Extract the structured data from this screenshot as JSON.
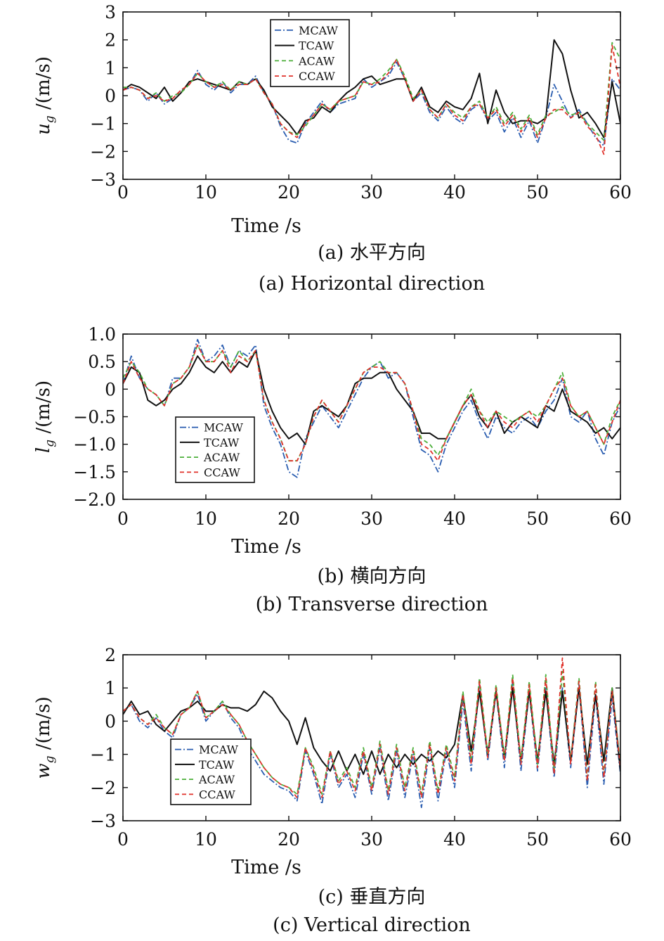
{
  "chart_data": [
    {
      "type": "line",
      "ylabel": "u_g /(m/s)",
      "ylabel_main": "u",
      "ylabel_sub": "g",
      "ylabel_unit": " /(m/s)",
      "xlabel": "Time /s",
      "caption_cn": "(a) 水平方向",
      "caption_en": "(a) Horizontal direction",
      "xlim": [
        0,
        60
      ],
      "ylim": [
        -3,
        3
      ],
      "xticks": [
        "0",
        "10",
        "20",
        "30",
        "40",
        "50",
        "60"
      ],
      "yticks": [
        "3",
        "2",
        "1",
        "0",
        "−1",
        "−2",
        "−3"
      ],
      "legend_position": "top-center",
      "x": [
        0,
        1,
        2,
        3,
        4,
        5,
        6,
        7,
        8,
        9,
        10,
        11,
        12,
        13,
        14,
        15,
        16,
        17,
        18,
        19,
        20,
        21,
        22,
        23,
        24,
        25,
        26,
        27,
        28,
        29,
        30,
        31,
        32,
        33,
        34,
        35,
        36,
        37,
        38,
        39,
        40,
        41,
        42,
        43,
        44,
        45,
        46,
        47,
        48,
        49,
        50,
        51,
        52,
        53,
        54,
        55,
        56,
        57,
        58,
        59,
        60
      ],
      "series": [
        {
          "name": "MCAW",
          "color": "#2a5db0",
          "dash": "9,3,2,3",
          "values": [
            0.2,
            0.3,
            0.2,
            -0.2,
            0.1,
            -0.3,
            -0.1,
            0.2,
            0.4,
            0.9,
            0.4,
            0.2,
            0.5,
            0.1,
            0.4,
            0.4,
            0.7,
            0.1,
            -0.3,
            -1.1,
            -1.6,
            -1.7,
            -1.0,
            -0.6,
            -0.2,
            -0.6,
            -0.3,
            -0.2,
            -0.1,
            0.6,
            0.3,
            0.5,
            0.7,
            1.2,
            0.6,
            -0.2,
            0.1,
            -0.6,
            -0.9,
            -0.4,
            -0.8,
            -1.0,
            -0.5,
            -0.3,
            -0.9,
            -0.6,
            -1.3,
            -0.8,
            -1.5,
            -0.9,
            -1.7,
            -0.8,
            0.4,
            -0.2,
            -0.8,
            -0.5,
            -1.0,
            -1.5,
            -1.8,
            0.6,
            0.2
          ]
        },
        {
          "name": "TCAW",
          "color": "#111111",
          "dash": "",
          "values": [
            0.2,
            0.4,
            0.3,
            0.1,
            -0.1,
            0.3,
            -0.2,
            0.1,
            0.5,
            0.6,
            0.5,
            0.4,
            0.3,
            0.2,
            0.5,
            0.4,
            0.6,
            0.2,
            -0.4,
            -0.7,
            -1.0,
            -1.4,
            -0.9,
            -0.8,
            -0.4,
            -0.6,
            -0.2,
            0.1,
            0.3,
            0.6,
            0.7,
            0.4,
            0.5,
            0.6,
            0.6,
            -0.2,
            0.3,
            -0.4,
            -0.6,
            -0.2,
            -0.4,
            -0.5,
            -0.1,
            0.8,
            -1.0,
            0.2,
            -0.6,
            -1.0,
            -0.9,
            -0.9,
            -1.0,
            -0.8,
            2.0,
            1.5,
            0.2,
            -0.8,
            -0.6,
            -1.0,
            -1.5,
            0.5,
            -1.0
          ]
        },
        {
          "name": "ACAW",
          "color": "#4caf3a",
          "dash": "6,4",
          "values": [
            0.3,
            0.3,
            0.2,
            -0.1,
            0.1,
            -0.2,
            0.0,
            0.1,
            0.4,
            0.8,
            0.5,
            0.3,
            0.5,
            0.2,
            0.5,
            0.4,
            0.6,
            0.1,
            -0.3,
            -1.0,
            -1.3,
            -1.4,
            -1.1,
            -0.7,
            -0.3,
            -0.5,
            -0.2,
            -0.1,
            0.0,
            0.5,
            0.4,
            0.6,
            0.9,
            1.3,
            0.7,
            -0.1,
            0.2,
            -0.5,
            -0.8,
            -0.3,
            -0.6,
            -0.8,
            -0.4,
            -0.2,
            -0.8,
            -0.4,
            -1.0,
            -0.6,
            -1.2,
            -0.7,
            -1.4,
            -0.7,
            -0.6,
            -0.4,
            -0.7,
            -0.6,
            -1.0,
            -1.3,
            -1.6,
            1.9,
            1.3
          ]
        },
        {
          "name": "CCAW",
          "color": "#e0322b",
          "dash": "6,4",
          "values": [
            0.2,
            0.3,
            0.2,
            -0.1,
            0.0,
            -0.2,
            -0.1,
            0.2,
            0.4,
            0.8,
            0.5,
            0.3,
            0.4,
            0.2,
            0.4,
            0.4,
            0.6,
            0.1,
            -0.3,
            -1.0,
            -1.3,
            -1.5,
            -1.0,
            -0.7,
            -0.3,
            -0.5,
            -0.2,
            -0.1,
            0.0,
            0.5,
            0.4,
            0.5,
            0.8,
            1.3,
            0.6,
            -0.2,
            0.2,
            -0.5,
            -0.8,
            -0.3,
            -0.7,
            -0.9,
            -0.4,
            -0.3,
            -0.8,
            -0.5,
            -1.1,
            -0.7,
            -1.3,
            -0.8,
            -1.5,
            -0.8,
            -0.5,
            -0.5,
            -0.8,
            -0.6,
            -1.1,
            -1.4,
            -2.1,
            1.8,
            0.3
          ]
        }
      ]
    },
    {
      "type": "line",
      "ylabel": "l_g /(m/s)",
      "ylabel_main": "l",
      "ylabel_sub": "g",
      "ylabel_unit": " /(m/s)",
      "xlabel": "Time /s",
      "caption_cn": "(b) 横向方向",
      "caption_en": "(b) Transverse direction",
      "xlim": [
        0,
        60
      ],
      "ylim": [
        -2.0,
        1.0
      ],
      "xticks": [
        "0",
        "10",
        "20",
        "30",
        "40",
        "50",
        "60"
      ],
      "yticks": [
        "1.0",
        "0.5",
        "0",
        "−0.5",
        "−1.0",
        "−1.5",
        "−2.0"
      ],
      "legend_position": "lower-left",
      "x": [
        0,
        1,
        2,
        3,
        4,
        5,
        6,
        7,
        8,
        9,
        10,
        11,
        12,
        13,
        14,
        15,
        16,
        17,
        18,
        19,
        20,
        21,
        22,
        23,
        24,
        25,
        26,
        27,
        28,
        29,
        30,
        31,
        32,
        33,
        34,
        35,
        36,
        37,
        38,
        39,
        40,
        41,
        42,
        43,
        44,
        45,
        46,
        47,
        48,
        49,
        50,
        51,
        52,
        53,
        54,
        55,
        56,
        57,
        58,
        59,
        60
      ],
      "series": [
        {
          "name": "MCAW",
          "color": "#2a5db0",
          "dash": "9,3,2,3",
          "values": [
            0.1,
            0.6,
            0.2,
            0.0,
            -0.1,
            -0.3,
            0.2,
            0.2,
            0.4,
            0.9,
            0.5,
            0.6,
            0.8,
            0.4,
            0.7,
            0.6,
            0.8,
            -0.3,
            -0.7,
            -1.0,
            -1.5,
            -1.6,
            -0.9,
            -0.6,
            -0.3,
            -0.5,
            -0.7,
            -0.4,
            -0.1,
            0.2,
            0.4,
            0.5,
            0.2,
            0.3,
            0.1,
            -0.5,
            -1.1,
            -1.2,
            -1.5,
            -1.0,
            -0.7,
            -0.4,
            -0.2,
            -0.6,
            -0.9,
            -0.5,
            -0.7,
            -0.8,
            -0.6,
            -0.5,
            -0.7,
            -0.4,
            -0.2,
            0.2,
            -0.5,
            -0.6,
            -0.4,
            -0.9,
            -1.2,
            -0.6,
            -0.3
          ]
        },
        {
          "name": "TCAW",
          "color": "#111111",
          "dash": "",
          "values": [
            0.1,
            0.4,
            0.3,
            -0.2,
            -0.3,
            -0.2,
            0.0,
            0.1,
            0.3,
            0.6,
            0.4,
            0.3,
            0.5,
            0.3,
            0.5,
            0.4,
            0.7,
            0.0,
            -0.4,
            -0.7,
            -0.9,
            -0.8,
            -1.0,
            -0.4,
            -0.3,
            -0.4,
            -0.5,
            -0.3,
            0.1,
            0.2,
            0.2,
            0.3,
            0.3,
            0.0,
            -0.2,
            -0.4,
            -0.8,
            -0.8,
            -0.9,
            -0.9,
            -0.6,
            -0.3,
            -0.1,
            -0.5,
            -0.7,
            -0.4,
            -0.8,
            -0.6,
            -0.5,
            -0.6,
            -0.7,
            -0.3,
            -0.4,
            0.0,
            -0.4,
            -0.5,
            -0.6,
            -0.8,
            -0.7,
            -0.9,
            -0.7
          ]
        },
        {
          "name": "ACAW",
          "color": "#4caf3a",
          "dash": "6,4",
          "values": [
            0.2,
            0.5,
            0.3,
            0.0,
            -0.1,
            -0.3,
            0.1,
            0.2,
            0.4,
            0.8,
            0.5,
            0.5,
            0.7,
            0.4,
            0.7,
            0.5,
            0.7,
            -0.2,
            -0.6,
            -0.9,
            -1.3,
            -1.3,
            -1.0,
            -0.5,
            -0.2,
            -0.4,
            -0.6,
            -0.3,
            0.0,
            0.3,
            0.4,
            0.5,
            0.3,
            0.3,
            0.1,
            -0.4,
            -0.9,
            -1.0,
            -1.2,
            -0.9,
            -0.6,
            -0.3,
            0.0,
            -0.4,
            -0.6,
            -0.4,
            -0.5,
            -0.6,
            -0.5,
            -0.4,
            -0.5,
            -0.3,
            0.0,
            0.3,
            -0.3,
            -0.5,
            -0.4,
            -0.7,
            -1.0,
            -0.5,
            -0.2
          ]
        },
        {
          "name": "CCAW",
          "color": "#e0322b",
          "dash": "6,4",
          "values": [
            0.1,
            0.5,
            0.2,
            0.0,
            -0.1,
            -0.3,
            0.1,
            0.2,
            0.4,
            0.8,
            0.5,
            0.5,
            0.7,
            0.3,
            0.6,
            0.5,
            0.7,
            -0.2,
            -0.6,
            -0.9,
            -1.3,
            -1.3,
            -1.0,
            -0.5,
            -0.2,
            -0.4,
            -0.6,
            -0.3,
            0.0,
            0.3,
            0.4,
            0.4,
            0.3,
            0.3,
            0.1,
            -0.4,
            -1.0,
            -1.1,
            -1.3,
            -0.9,
            -0.6,
            -0.3,
            -0.1,
            -0.4,
            -0.7,
            -0.4,
            -0.6,
            -0.7,
            -0.5,
            -0.4,
            -0.6,
            -0.3,
            0.0,
            0.2,
            -0.3,
            -0.5,
            -0.4,
            -0.7,
            -1.0,
            -0.6,
            -0.2
          ]
        }
      ]
    },
    {
      "type": "line",
      "ylabel": "w_g /(m/s)",
      "ylabel_main": "w",
      "ylabel_sub": "g",
      "ylabel_unit": " /(m/s)",
      "xlabel": "Time /s",
      "caption_cn": "(c) 垂直方向",
      "caption_en": "(c) Vertical direction",
      "xlim": [
        0,
        60
      ],
      "ylim": [
        -3,
        2
      ],
      "xticks": [
        "0",
        "10",
        "20",
        "30",
        "40",
        "50",
        "60"
      ],
      "yticks": [
        "2",
        "1",
        "0",
        "−1",
        "−2",
        "−3"
      ],
      "legend_position": "lower-left",
      "x": [
        0,
        1,
        2,
        3,
        4,
        5,
        6,
        7,
        8,
        9,
        10,
        11,
        12,
        13,
        14,
        15,
        16,
        17,
        18,
        19,
        20,
        21,
        22,
        23,
        24,
        25,
        26,
        27,
        28,
        29,
        30,
        31,
        32,
        33,
        34,
        35,
        36,
        37,
        38,
        39,
        40,
        41,
        42,
        43,
        44,
        45,
        46,
        47,
        48,
        49,
        50,
        51,
        52,
        53,
        54,
        55,
        56,
        57,
        58,
        59,
        60
      ],
      "series": [
        {
          "name": "MCAW",
          "color": "#2a5db0",
          "dash": "9,3,2,3",
          "values": [
            0.3,
            0.5,
            0.0,
            -0.2,
            0.1,
            -0.3,
            -0.5,
            0.2,
            0.4,
            0.8,
            0.0,
            0.3,
            0.6,
            0.1,
            -0.2,
            -0.8,
            -1.2,
            -1.6,
            -1.8,
            -2.0,
            -2.1,
            -2.4,
            -0.9,
            -1.6,
            -2.5,
            -1.0,
            -2.0,
            -1.6,
            -2.3,
            -1.0,
            -2.2,
            -0.8,
            -2.4,
            -0.9,
            -2.3,
            -1.0,
            -2.6,
            -0.8,
            -2.4,
            -0.9,
            -2.0,
            0.6,
            -1.5,
            1.1,
            -1.2,
            0.9,
            -1.4,
            1.2,
            -1.5,
            0.9,
            -1.5,
            1.0,
            -1.7,
            1.0,
            -1.4,
            1.1,
            -2.0,
            0.8,
            -1.9,
            0.7,
            -1.6
          ]
        },
        {
          "name": "TCAW",
          "color": "#111111",
          "dash": "",
          "values": [
            0.2,
            0.6,
            0.2,
            0.3,
            -0.1,
            -0.3,
            0.0,
            0.3,
            0.4,
            0.6,
            0.3,
            0.3,
            0.5,
            0.4,
            0.4,
            0.3,
            0.5,
            0.9,
            0.7,
            0.3,
            0.0,
            -0.7,
            0.1,
            -0.8,
            -1.2,
            -1.5,
            -0.9,
            -1.5,
            -1.0,
            -1.6,
            -0.9,
            -1.6,
            -1.0,
            -1.4,
            -1.0,
            -1.3,
            -1.0,
            -1.2,
            -0.9,
            -1.1,
            -0.7,
            0.8,
            -0.9,
            0.9,
            -1.0,
            0.9,
            -1.1,
            1.0,
            -1.2,
            0.9,
            -1.2,
            0.9,
            -1.3,
            0.9,
            -1.2,
            1.0,
            -1.3,
            0.8,
            -1.2,
            1.0,
            -1.5
          ]
        },
        {
          "name": "ACAW",
          "color": "#4caf3a",
          "dash": "6,4",
          "values": [
            0.3,
            0.5,
            0.1,
            -0.1,
            0.2,
            -0.2,
            -0.4,
            0.2,
            0.4,
            0.9,
            0.1,
            0.3,
            0.6,
            0.2,
            -0.1,
            -0.6,
            -1.0,
            -1.4,
            -1.7,
            -1.9,
            -2.0,
            -2.2,
            -0.8,
            -1.4,
            -2.2,
            -0.9,
            -1.8,
            -1.4,
            -2.0,
            -0.8,
            -2.0,
            -0.6,
            -2.1,
            -0.7,
            -2.0,
            -0.8,
            -2.2,
            -0.6,
            -2.1,
            -0.7,
            -1.7,
            0.9,
            -1.2,
            1.3,
            -1.0,
            1.1,
            -1.1,
            1.4,
            -1.2,
            1.2,
            -1.3,
            1.4,
            -1.5,
            1.5,
            -1.2,
            1.3,
            -1.7,
            1.2,
            -1.6,
            1.0,
            -1.3
          ]
        },
        {
          "name": "CCAW",
          "color": "#e0322b",
          "dash": "6,4",
          "values": [
            0.3,
            0.5,
            0.1,
            -0.1,
            0.1,
            -0.2,
            -0.4,
            0.2,
            0.4,
            0.9,
            0.1,
            0.3,
            0.5,
            0.2,
            -0.1,
            -0.6,
            -1.0,
            -1.4,
            -1.7,
            -1.9,
            -2.0,
            -2.3,
            -0.8,
            -1.5,
            -2.3,
            -0.9,
            -1.9,
            -1.5,
            -2.1,
            -0.9,
            -2.1,
            -0.7,
            -2.2,
            -0.8,
            -2.1,
            -0.9,
            -2.3,
            -0.7,
            -2.2,
            -0.8,
            -1.8,
            0.8,
            -1.3,
            1.2,
            -1.1,
            1.0,
            -1.2,
            1.3,
            -1.3,
            1.1,
            -1.4,
            1.3,
            -1.6,
            1.9,
            -1.3,
            1.2,
            -1.8,
            1.1,
            -1.7,
            0.9,
            -1.4
          ]
        }
      ]
    }
  ]
}
